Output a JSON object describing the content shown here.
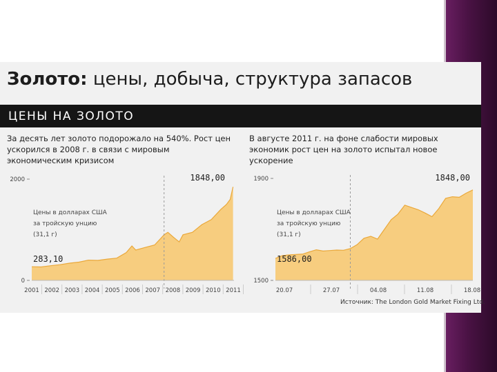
{
  "slide": {
    "title_bold": "Золото:",
    "title_rest": " цены, добыча, структура запасов",
    "section_band": "ЦЕНЫ НА ЗОЛОТО",
    "source": "Источник: The London Gold Market Fixing Ltd.",
    "accent_colors": {
      "area_fill": "#f7cd7f",
      "area_stroke": "#eaa83a",
      "purple": "#4a1244",
      "band": "#151515"
    }
  },
  "chart_data": [
    {
      "type": "area",
      "caption": "За десять лет золото подорожало на 540%. Рост цен ускорился в 2008 г. в связи с мировым экономическим кризисом",
      "units_label": [
        "Цены в долларах США",
        "за тройскую унцию",
        "(31,1 г)"
      ],
      "y_ticks": [
        {
          "value": 0,
          "label": "0"
        },
        {
          "value": 2000,
          "label": "2000"
        }
      ],
      "ylim": [
        0,
        2000
      ],
      "x_tick_labels": [
        "2001",
        "2002",
        "2003",
        "2004",
        "2005",
        "2006",
        "2007",
        "2008",
        "2009",
        "2010",
        "2011"
      ],
      "xlim": [
        2001,
        2011.7
      ],
      "marker_x": 2008,
      "start_label": "283,10",
      "end_label": "1848,00",
      "x": [
        2001,
        2001.5,
        2002,
        2002.5,
        2003,
        2003.5,
        2004,
        2004.5,
        2005,
        2005.5,
        2006,
        2006.3,
        2006.5,
        2007,
        2007.5,
        2008,
        2008.2,
        2008.5,
        2008.8,
        2009,
        2009.5,
        2010,
        2010.5,
        2011,
        2011.3,
        2011.5,
        2011.65
      ],
      "values": [
        270,
        265,
        290,
        310,
        340,
        360,
        400,
        395,
        420,
        440,
        550,
        680,
        600,
        650,
        700,
        900,
        950,
        850,
        760,
        900,
        950,
        1100,
        1200,
        1400,
        1500,
        1600,
        1848
      ]
    },
    {
      "type": "area",
      "caption": "В августе 2011 г. на фоне слабости мировых экономик рост цен на золото испытал новое ускорение",
      "units_label": [
        "Цены в долларах США",
        "за тройскую унцию",
        "(31,1 г)"
      ],
      "y_ticks": [
        {
          "value": 1500,
          "label": "1500"
        },
        {
          "value": 1900,
          "label": "1900"
        }
      ],
      "ylim": [
        1500,
        1900
      ],
      "x_tick_labels": [
        "20.07",
        "27.07",
        "04.08",
        "11.08",
        "18.08"
      ],
      "xlim": [
        0,
        29
      ],
      "marker_x": 11,
      "start_label": "1586,00",
      "end_label": "1848,00",
      "x": [
        0,
        1,
        2,
        3,
        4,
        5,
        6,
        7,
        8,
        9,
        10,
        11,
        12,
        13,
        14,
        15,
        16,
        17,
        18,
        19,
        20,
        21,
        22,
        23,
        24,
        25,
        26,
        27,
        28,
        29
      ],
      "values": [
        1586,
        1597,
        1600,
        1602,
        1603,
        1612,
        1620,
        1615,
        1617,
        1619,
        1618,
        1625,
        1640,
        1665,
        1673,
        1662,
        1700,
        1738,
        1760,
        1795,
        1786,
        1777,
        1764,
        1750,
        1782,
        1822,
        1828,
        1826,
        1842,
        1855
      ]
    }
  ]
}
